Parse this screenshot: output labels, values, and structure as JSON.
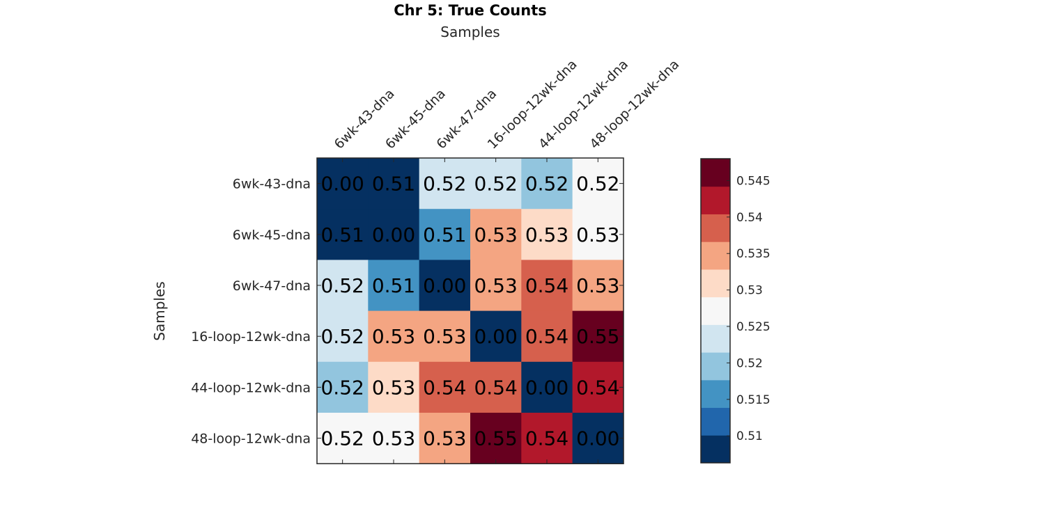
{
  "chart_data": {
    "type": "heatmap",
    "title": "Chr 5: True Counts",
    "xlabel": "Samples",
    "ylabel": "Samples",
    "x_categories": [
      "6wk-43-dna",
      "6wk-45-dna",
      "6wk-47-dna",
      "16-loop-12wk-dna",
      "44-loop-12wk-dna",
      "48-loop-12wk-dna"
    ],
    "y_categories": [
      "6wk-43-dna",
      "6wk-45-dna",
      "6wk-47-dna",
      "16-loop-12wk-dna",
      "44-loop-12wk-dna",
      "48-loop-12wk-dna"
    ],
    "values": [
      [
        0.0,
        0.51,
        0.52,
        0.52,
        0.52,
        0.52
      ],
      [
        0.51,
        0.0,
        0.51,
        0.53,
        0.53,
        0.53
      ],
      [
        0.52,
        0.51,
        0.0,
        0.53,
        0.54,
        0.53
      ],
      [
        0.52,
        0.53,
        0.53,
        0.0,
        0.54,
        0.55
      ],
      [
        0.52,
        0.53,
        0.54,
        0.54,
        0.0,
        0.54
      ],
      [
        0.52,
        0.53,
        0.53,
        0.55,
        0.54,
        0.0
      ]
    ],
    "cell_colors": [
      [
        "#053061",
        "#053061",
        "#d1e5f0",
        "#d1e5f0",
        "#92c5de",
        "#f7f7f7"
      ],
      [
        "#053061",
        "#053061",
        "#4393c3",
        "#f4a582",
        "#fddbc7",
        "#f7f7f7"
      ],
      [
        "#d1e5f0",
        "#4393c3",
        "#053061",
        "#f4a582",
        "#d6604d",
        "#f4a582"
      ],
      [
        "#d1e5f0",
        "#f4a582",
        "#f4a582",
        "#053061",
        "#d6604d",
        "#67001f"
      ],
      [
        "#92c5de",
        "#fddbc7",
        "#d6604d",
        "#d6604d",
        "#053061",
        "#b2182b"
      ],
      [
        "#f7f7f7",
        "#f7f7f7",
        "#f4a582",
        "#67001f",
        "#b2182b",
        "#053061"
      ]
    ],
    "colorbar": {
      "colors": [
        "#053061",
        "#2166ac",
        "#4393c3",
        "#92c5de",
        "#d1e5f0",
        "#f7f7f7",
        "#fddbc7",
        "#f4a582",
        "#d6604d",
        "#b2182b",
        "#67001f"
      ],
      "range": [
        0.5063,
        0.548
      ],
      "ticks": [
        0.51,
        0.515,
        0.52,
        0.525,
        0.53,
        0.535,
        0.54,
        0.545
      ],
      "tick_labels": [
        "0.51",
        "0.515",
        "0.52",
        "0.525",
        "0.53",
        "0.535",
        "0.54",
        "0.545"
      ]
    }
  }
}
